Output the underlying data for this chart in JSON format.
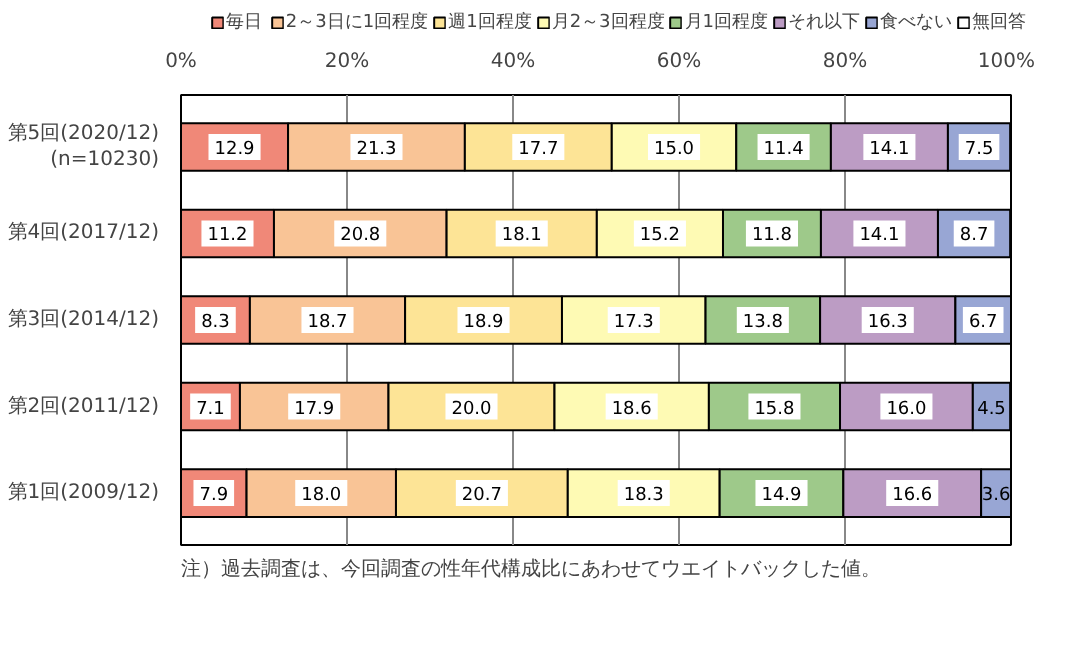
{
  "chart_data": {
    "type": "bar",
    "orientation": "horizontal",
    "stacked": true,
    "categories": [
      "第5回(2020/12)\n(n=10230)",
      "第4回(2017/12)",
      "第3回(2014/12)",
      "第2回(2011/12)",
      "第1回(2009/12)"
    ],
    "series": [
      {
        "name": "毎日",
        "color": "#f08878",
        "values": [
          12.9,
          11.2,
          8.3,
          7.1,
          7.9
        ],
        "value_labels": [
          "12.9",
          "11.2",
          "8.3",
          "7.1",
          "7.9"
        ]
      },
      {
        "name": "2～3日に1回程度",
        "color": "#f9c496",
        "values": [
          21.3,
          20.8,
          18.7,
          17.9,
          18.0
        ],
        "value_labels": [
          "21.3",
          "20.8",
          "18.7",
          "17.9",
          "18.0"
        ]
      },
      {
        "name": "週1回程度",
        "color": "#fde496",
        "values": [
          17.7,
          18.1,
          18.9,
          20.0,
          20.7
        ],
        "value_labels": [
          "17.7",
          "18.1",
          "18.9",
          "20.0",
          "20.7"
        ]
      },
      {
        "name": "月2～3回程度",
        "color": "#fefab4",
        "values": [
          15.0,
          15.2,
          17.3,
          18.6,
          18.3
        ],
        "value_labels": [
          "15.0",
          "15.2",
          "17.3",
          "18.6",
          "18.3"
        ]
      },
      {
        "name": "月1回程度",
        "color": "#9ec98a",
        "values": [
          11.4,
          11.8,
          13.8,
          15.8,
          14.9
        ],
        "value_labels": [
          "11.4",
          "11.8",
          "13.8",
          "15.8",
          "14.9"
        ]
      },
      {
        "name": "それ以下",
        "color": "#bc9cc4",
        "values": [
          14.1,
          14.1,
          16.3,
          16.0,
          16.6
        ],
        "value_labels": [
          "14.1",
          "14.1",
          "16.3",
          "16.0",
          "16.6"
        ]
      },
      {
        "name": "食べない",
        "color": "#98a6d4",
        "values": [
          7.5,
          8.7,
          6.7,
          4.5,
          3.6
        ],
        "value_labels": [
          "7.5",
          "8.7",
          "6.7",
          "4.5",
          "3.6"
        ]
      },
      {
        "name": "無回答",
        "color": "#ffffff",
        "values": [
          null,
          null,
          null,
          null,
          null
        ]
      }
    ],
    "xlim": [
      0,
      100
    ],
    "xticks": [
      {
        "value": 0,
        "label": "0%"
      },
      {
        "value": 20,
        "label": "20%"
      },
      {
        "value": 40,
        "label": "40%"
      },
      {
        "value": 60,
        "label": "60%"
      },
      {
        "value": 80,
        "label": "80%"
      },
      {
        "value": 100,
        "label": "100%"
      }
    ],
    "grid": "x",
    "legend": "top",
    "annotations": [
      "注）過去調査は、今回調査の性年代構成比にあわせてウエイトバックした値。"
    ]
  }
}
